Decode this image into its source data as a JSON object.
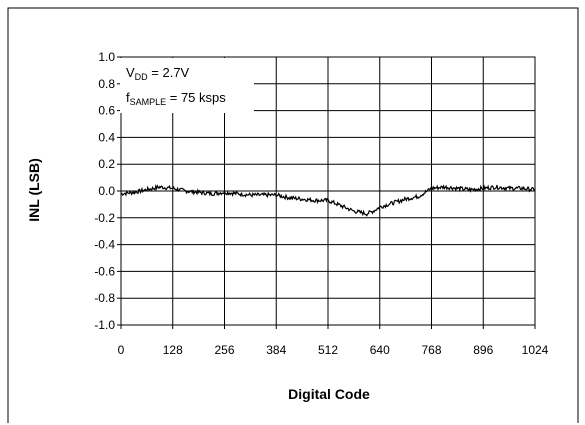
{
  "chart_data": {
    "type": "line",
    "title": "",
    "xlabel": "Digital Code",
    "ylabel": "INL (LSB)",
    "xlim": [
      0,
      1024
    ],
    "ylim": [
      -1.0,
      1.0
    ],
    "x_ticks": [
      0,
      128,
      256,
      384,
      512,
      640,
      768,
      896,
      1024
    ],
    "x_tick_labels": [
      "0",
      "128",
      "256",
      "384",
      "512",
      "640",
      "768",
      "896",
      "1024"
    ],
    "y_ticks": [
      1.0,
      0.8,
      0.6,
      0.4,
      0.2,
      0.0,
      -0.2,
      -0.4,
      -0.6,
      -0.8,
      -1.0
    ],
    "y_tick_labels": [
      "1.0",
      "0.8",
      "0.6",
      "0.4",
      "0.2",
      "0.0",
      "-0.2",
      "-0.4",
      "-0.6",
      "-0.8",
      "-1.0"
    ],
    "grid": true,
    "legend": "none",
    "annotation": {
      "line1": {
        "main": "V",
        "sub": "DD",
        "rest": " = 2.7V"
      },
      "line2": {
        "main": "f",
        "sub": "SAMPLE",
        "rest": " = 75 ksps"
      }
    },
    "series": [
      {
        "color": "#000000",
        "x": [
          0,
          32,
          64,
          96,
          128,
          160,
          192,
          224,
          256,
          288,
          320,
          352,
          384,
          416,
          448,
          480,
          512,
          528,
          544,
          560,
          576,
          592,
          608,
          624,
          640,
          672,
          704,
          736,
          768,
          800,
          832,
          864,
          896,
          928,
          960,
          992,
          1024
        ],
        "y": [
          -0.02,
          -0.01,
          0.01,
          0.03,
          0.02,
          0.0,
          -0.01,
          -0.02,
          -0.01,
          -0.02,
          -0.03,
          -0.03,
          -0.03,
          -0.05,
          -0.06,
          -0.07,
          -0.07,
          -0.09,
          -0.11,
          -0.13,
          -0.15,
          -0.16,
          -0.17,
          -0.15,
          -0.12,
          -0.09,
          -0.06,
          -0.04,
          0.02,
          0.03,
          0.02,
          0.01,
          0.02,
          0.03,
          0.02,
          0.02,
          0.01
        ]
      }
    ]
  }
}
